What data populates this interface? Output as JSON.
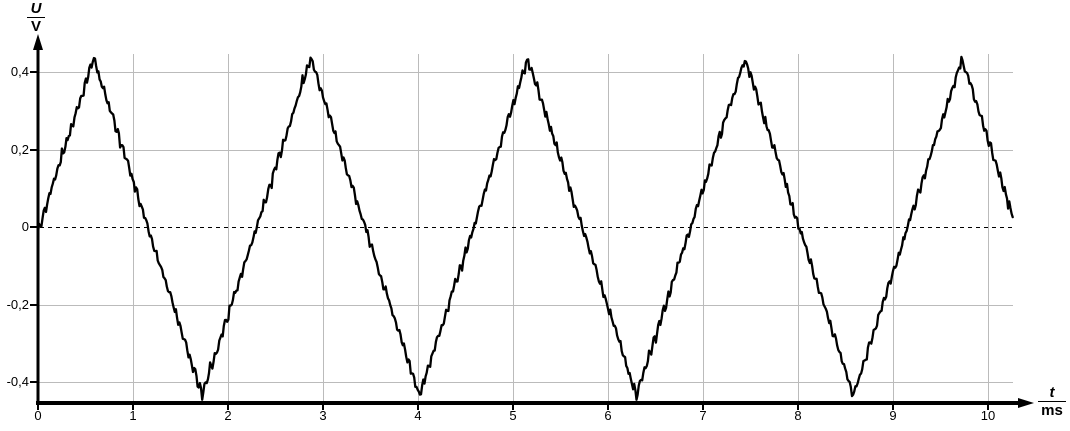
{
  "chart_data": {
    "type": "line",
    "title": "",
    "ylabel": "U/V",
    "xlabel": "t/ms",
    "ylabel_numerator": "U",
    "ylabel_denominator": "V",
    "xlabel_numerator": "t",
    "xlabel_denominator": "ms",
    "x_ticks": {
      "values": [
        0,
        1,
        2,
        3,
        4,
        5,
        6,
        7,
        8,
        9,
        10
      ],
      "labels": [
        "0",
        "1",
        "2",
        "3",
        "4",
        "5",
        "6",
        "7",
        "8",
        "9",
        "10"
      ]
    },
    "y_ticks": {
      "values": [
        0.4,
        0.2,
        0,
        -0.2,
        -0.4
      ],
      "labels": [
        "0,4",
        "0,2",
        "0",
        "-0,2",
        "-0,4"
      ]
    },
    "x_axis_range_ms": [
      0,
      10.5
    ],
    "y_axis_range_V": [
      -0.47,
      0.48
    ],
    "grid": true,
    "zero_line_style": "dashed",
    "legend": "none",
    "colors": {
      "grid": "#bbbbbb",
      "axis": "#000000",
      "trace": "#000000",
      "background": "#ffffff"
    },
    "waveform": {
      "shape": "triangle",
      "amplitude_V": 0.435,
      "period_ms": 2.285,
      "approx_frequency_Hz": 438,
      "zero_crossing_rising_ms": 0.015,
      "t_start_ms": 0,
      "t_end_ms": 10.26,
      "peaks_at_ms": [
        0.6,
        2.88,
        5.15,
        7.44,
        9.74
      ],
      "troughs_at_ms": [
        1.73,
        4.01,
        6.3,
        8.58
      ],
      "peak_value_V": 0.44,
      "trough_value_V": -0.45,
      "noise_ripple_amplitude_V": 0.008,
      "noise_ripple_period_ms": 0.05,
      "noise_jitter_V": 0.007
    }
  }
}
